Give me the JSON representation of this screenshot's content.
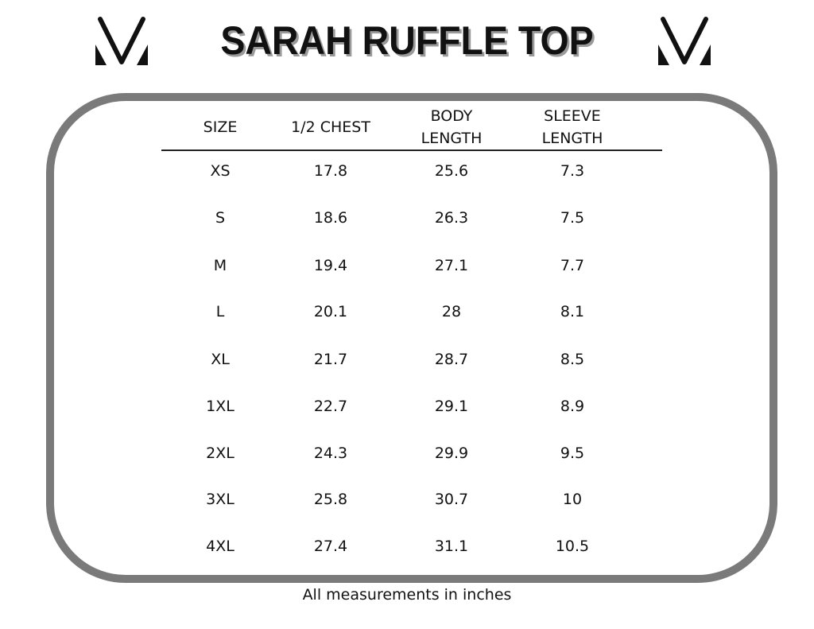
{
  "title": "SARAH RUFFLE TOP",
  "logo_icon": "v-monogram-logo",
  "border_color": "#7a7a7a",
  "table": {
    "headers": [
      "SIZE",
      "1/2 CHEST",
      "BODY\nLENGTH",
      "SLEEVE\nLENGTH"
    ],
    "header_lines": [
      [
        "SIZE"
      ],
      [
        "1/2 CHEST"
      ],
      [
        "BODY",
        "LENGTH"
      ],
      [
        "SLEEVE",
        "LENGTH"
      ]
    ],
    "rows": [
      [
        "XS",
        "17.8",
        "25.6",
        "7.3"
      ],
      [
        "S",
        "18.6",
        "26.3",
        "7.5"
      ],
      [
        "M",
        "19.4",
        "27.1",
        "7.7"
      ],
      [
        "L",
        "20.1",
        "28",
        "8.1"
      ],
      [
        "XL",
        "21.7",
        "28.7",
        "8.5"
      ],
      [
        "1XL",
        "22.7",
        "29.1",
        "8.9"
      ],
      [
        "2XL",
        "24.3",
        "29.9",
        "9.5"
      ],
      [
        "3XL",
        "25.8",
        "30.7",
        "10"
      ],
      [
        "4XL",
        "27.4",
        "31.1",
        "10.5"
      ]
    ]
  },
  "footer": "All measurements in inches"
}
